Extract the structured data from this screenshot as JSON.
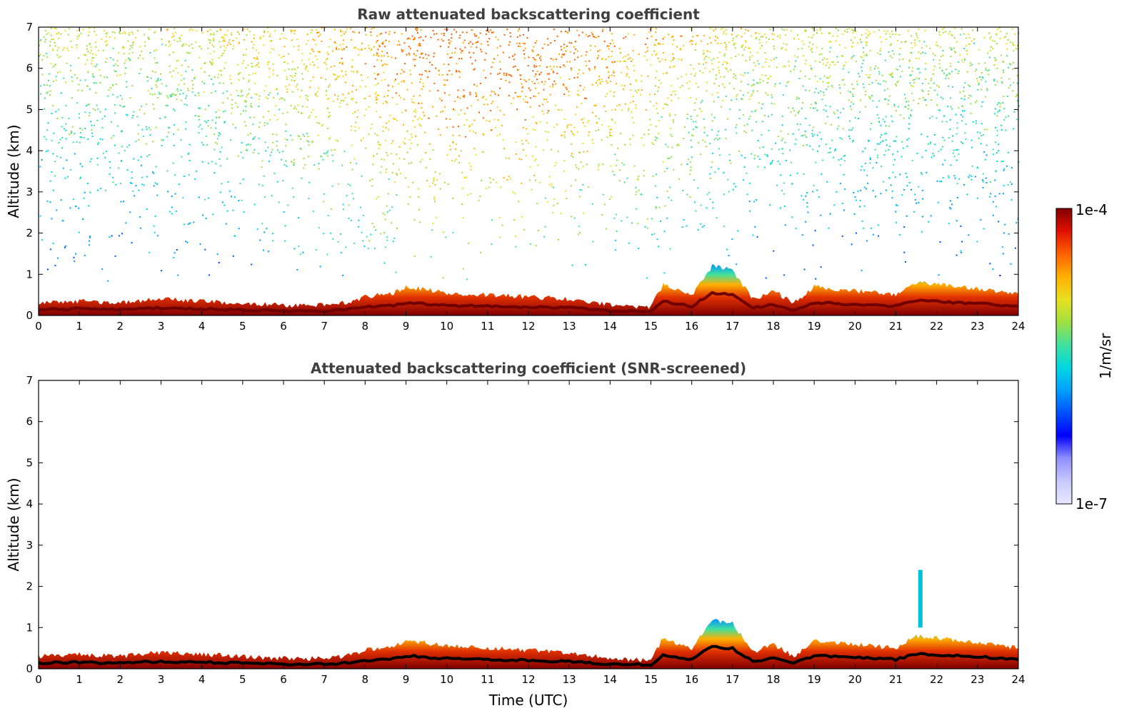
{
  "chart_data": [
    {
      "type": "heatmap",
      "title": "Raw attenuated backscattering coefficient",
      "xlabel": "",
      "ylabel": "Altitude (km)",
      "xlim": [
        0,
        24
      ],
      "ylim": [
        0,
        7
      ],
      "xticks": [
        "0",
        "1",
        "2",
        "3",
        "4",
        "5",
        "6",
        "7",
        "8",
        "9",
        "10",
        "11",
        "12",
        "13",
        "14",
        "15",
        "16",
        "17",
        "18",
        "19",
        "20",
        "21",
        "22",
        "23",
        "24"
      ],
      "yticks": [
        "0",
        "1",
        "2",
        "3",
        "4",
        "5",
        "6",
        "7"
      ],
      "boundary_layer_top_km": [
        [
          0,
          0.3
        ],
        [
          1,
          0.35
        ],
        [
          2,
          0.3
        ],
        [
          3,
          0.4
        ],
        [
          4,
          0.35
        ],
        [
          5,
          0.3
        ],
        [
          6,
          0.25
        ],
        [
          7,
          0.25
        ],
        [
          7.5,
          0.3
        ],
        [
          8,
          0.45
        ],
        [
          8.7,
          0.55
        ],
        [
          9,
          0.7
        ],
        [
          10,
          0.55
        ],
        [
          11,
          0.5
        ],
        [
          12,
          0.45
        ],
        [
          13,
          0.4
        ],
        [
          14,
          0.25
        ],
        [
          15,
          0.2
        ],
        [
          15.3,
          0.75
        ],
        [
          16,
          0.5
        ],
        [
          16.5,
          1.2
        ],
        [
          17,
          1.1
        ],
        [
          17.5,
          0.4
        ],
        [
          18,
          0.6
        ],
        [
          18.5,
          0.3
        ],
        [
          19,
          0.7
        ],
        [
          20,
          0.6
        ],
        [
          21,
          0.5
        ],
        [
          21.5,
          0.8
        ],
        [
          22,
          0.75
        ],
        [
          23,
          0.65
        ],
        [
          24,
          0.5
        ]
      ],
      "background_noise": "high-altitude noise increasing toward daytime (08-15 UTC)"
    },
    {
      "type": "heatmap",
      "title": "Attenuated backscattering coefficient (SNR-screened)",
      "xlabel": "Time (UTC)",
      "ylabel": "Altitude (km)",
      "xlim": [
        0,
        24
      ],
      "ylim": [
        0,
        7
      ],
      "xticks": [
        "0",
        "1",
        "2",
        "3",
        "4",
        "5",
        "6",
        "7",
        "8",
        "9",
        "10",
        "11",
        "12",
        "13",
        "14",
        "15",
        "16",
        "17",
        "18",
        "19",
        "20",
        "21",
        "22",
        "23",
        "24"
      ],
      "yticks": [
        "0",
        "1",
        "2",
        "3",
        "4",
        "5",
        "6",
        "7"
      ],
      "boundary_layer_top_km": [
        [
          0,
          0.3
        ],
        [
          1,
          0.35
        ],
        [
          2,
          0.3
        ],
        [
          3,
          0.4
        ],
        [
          4,
          0.35
        ],
        [
          5,
          0.3
        ],
        [
          6,
          0.25
        ],
        [
          7,
          0.25
        ],
        [
          7.5,
          0.3
        ],
        [
          8,
          0.45
        ],
        [
          8.7,
          0.55
        ],
        [
          9,
          0.7
        ],
        [
          10,
          0.55
        ],
        [
          11,
          0.5
        ],
        [
          12,
          0.45
        ],
        [
          13,
          0.4
        ],
        [
          14,
          0.25
        ],
        [
          15,
          0.2
        ],
        [
          15.3,
          0.75
        ],
        [
          16,
          0.5
        ],
        [
          16.5,
          1.2
        ],
        [
          17,
          1.1
        ],
        [
          17.5,
          0.4
        ],
        [
          18,
          0.6
        ],
        [
          18.5,
          0.3
        ],
        [
          19,
          0.7
        ],
        [
          20,
          0.6
        ],
        [
          21,
          0.5
        ],
        [
          21.5,
          0.8
        ],
        [
          22,
          0.75
        ],
        [
          23,
          0.65
        ],
        [
          24,
          0.5
        ]
      ],
      "isolated_plume": {
        "time": 21.6,
        "altitude_km": [
          1.0,
          2.4
        ]
      }
    }
  ],
  "colorbar": {
    "label": "1/m/sr",
    "max_label": "1e-4",
    "min_label": "1e-7",
    "scale": "log",
    "colors": [
      "#e8e8ff",
      "#c8c8ff",
      "#9090ff",
      "#0000ff",
      "#0050ff",
      "#00a0ff",
      "#00d8e0",
      "#40e0a0",
      "#a0e040",
      "#e8e020",
      "#ffb000",
      "#ff6000",
      "#e01000",
      "#800000"
    ]
  }
}
